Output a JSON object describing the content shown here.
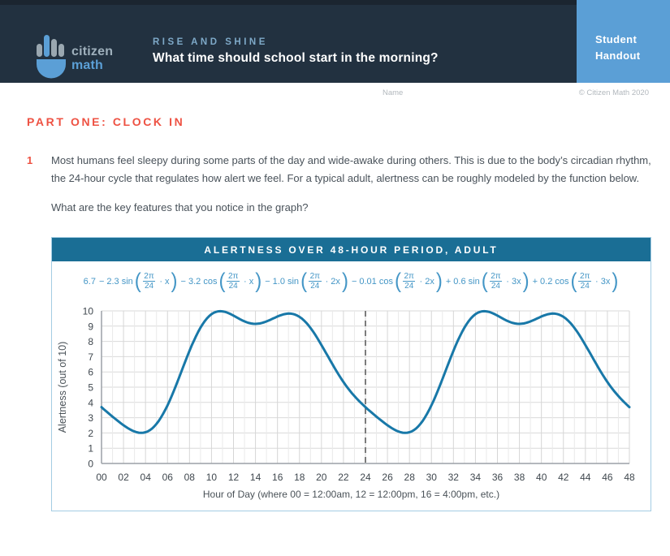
{
  "header": {
    "brand_line1": "citizen",
    "brand_line2": "math",
    "kicker": "RISE AND SHINE",
    "title": "What time should school start in the morning?",
    "badge_line1": "Student",
    "badge_line2": "Handout"
  },
  "meta": {
    "name_label": "Name",
    "copyright": "© Citizen Math 2020"
  },
  "section": {
    "heading": "PART ONE: CLOCK IN"
  },
  "question": {
    "number": "1",
    "text": "Most humans feel sleepy during some parts of the day and wide-awake during others. This is due to the body’s circadian rhythm, the 24-hour cycle that regulates how alert we feel. For a typical adult, alertness can be roughly modeled by the function below.",
    "prompt": "What are the key features that you notice in the graph?"
  },
  "formula": {
    "leading": "6.7",
    "frac_num": "2π",
    "frac_den": "24",
    "terms": [
      {
        "op": "−",
        "coef": "2.3",
        "fn": "sin",
        "arg": "x"
      },
      {
        "op": "−",
        "coef": "3.2",
        "fn": "cos",
        "arg": "x"
      },
      {
        "op": "−",
        "coef": "1.0",
        "fn": "sin",
        "arg": "2x"
      },
      {
        "op": "−",
        "coef": "0.01",
        "fn": "cos",
        "arg": "2x"
      },
      {
        "op": "+",
        "coef": "0.6",
        "fn": "sin",
        "arg": "3x"
      },
      {
        "op": "+",
        "coef": "0.2",
        "fn": "cos",
        "arg": "3x"
      }
    ]
  },
  "chart_data": {
    "type": "line",
    "title": "ALERTNESS OVER 48-HOUR PERIOD, ADULT",
    "xlabel": "Hour of Day  (where 00 = 12:00am, 12 = 12:00pm, 16 = 4:00pm, etc.)",
    "ylabel": "Alertness  (out of 10)",
    "xlim": [
      0,
      48
    ],
    "ylim": [
      0,
      10
    ],
    "x_ticks": [
      "00",
      "02",
      "04",
      "06",
      "08",
      "10",
      "12",
      "14",
      "16",
      "18",
      "20",
      "22",
      "24",
      "26",
      "28",
      "30",
      "32",
      "34",
      "36",
      "38",
      "40",
      "42",
      "44",
      "46",
      "48"
    ],
    "y_ticks": [
      0,
      1,
      2,
      3,
      4,
      5,
      6,
      7,
      8,
      9,
      10
    ],
    "grid": true,
    "legend": "none",
    "dashed_vline_x": 24,
    "function": {
      "constant": 6.7,
      "period": 24,
      "terms": [
        {
          "fn": "sin",
          "k": 1,
          "coef": -2.3
        },
        {
          "fn": "cos",
          "k": 1,
          "coef": -3.2
        },
        {
          "fn": "sin",
          "k": 2,
          "coef": -1.0
        },
        {
          "fn": "cos",
          "k": 2,
          "coef": -0.01
        },
        {
          "fn": "sin",
          "k": 3,
          "coef": 0.6
        },
        {
          "fn": "cos",
          "k": 3,
          "coef": 0.2
        }
      ]
    },
    "x_hours": [
      0,
      1,
      2,
      3,
      4,
      5,
      6,
      7,
      8,
      9,
      10,
      11,
      12,
      13,
      14,
      15,
      16,
      17,
      18,
      19,
      20,
      21,
      22,
      23,
      24,
      25,
      26,
      27,
      28,
      29,
      30,
      31,
      32,
      33,
      34,
      35,
      36,
      37,
      38,
      39,
      40,
      41,
      42,
      43,
      44,
      45,
      46,
      47,
      48
    ],
    "hourly_values": [
      3.69,
      3.07,
      2.51,
      2.09,
      2.05,
      2.59,
      3.81,
      5.53,
      7.38,
      8.9,
      9.78,
      9.97,
      9.69,
      9.31,
      9.15,
      9.31,
      9.63,
      9.82,
      9.61,
      8.88,
      7.76,
      6.5,
      5.34,
      4.41,
      3.69,
      3.07,
      2.51,
      2.09,
      2.05,
      2.59,
      3.81,
      5.53,
      7.38,
      8.9,
      9.78,
      9.97,
      9.69,
      9.31,
      9.15,
      9.31,
      9.63,
      9.82,
      9.61,
      8.88,
      7.76,
      6.5,
      5.34,
      4.41,
      3.69
    ],
    "curve_color": "#1878a8",
    "line_width": 3
  },
  "colors": {
    "header_bg": "#223140",
    "header_top_strip": "#1b2530",
    "accent_blue": "#5b9fd6",
    "kicker_blue": "#7ea9c8",
    "heading_red": "#ee5243",
    "chart_header_bg": "#1a6e95",
    "formula_blue": "#4496c6",
    "panel_border": "#a3cce3",
    "grid_major": "#d6d6d6",
    "grid_minor": "#eaeaea",
    "axis_gray": "#9ba1a7",
    "dashed_gray": "#7c7c7c",
    "tick_text": "#3f474e"
  }
}
